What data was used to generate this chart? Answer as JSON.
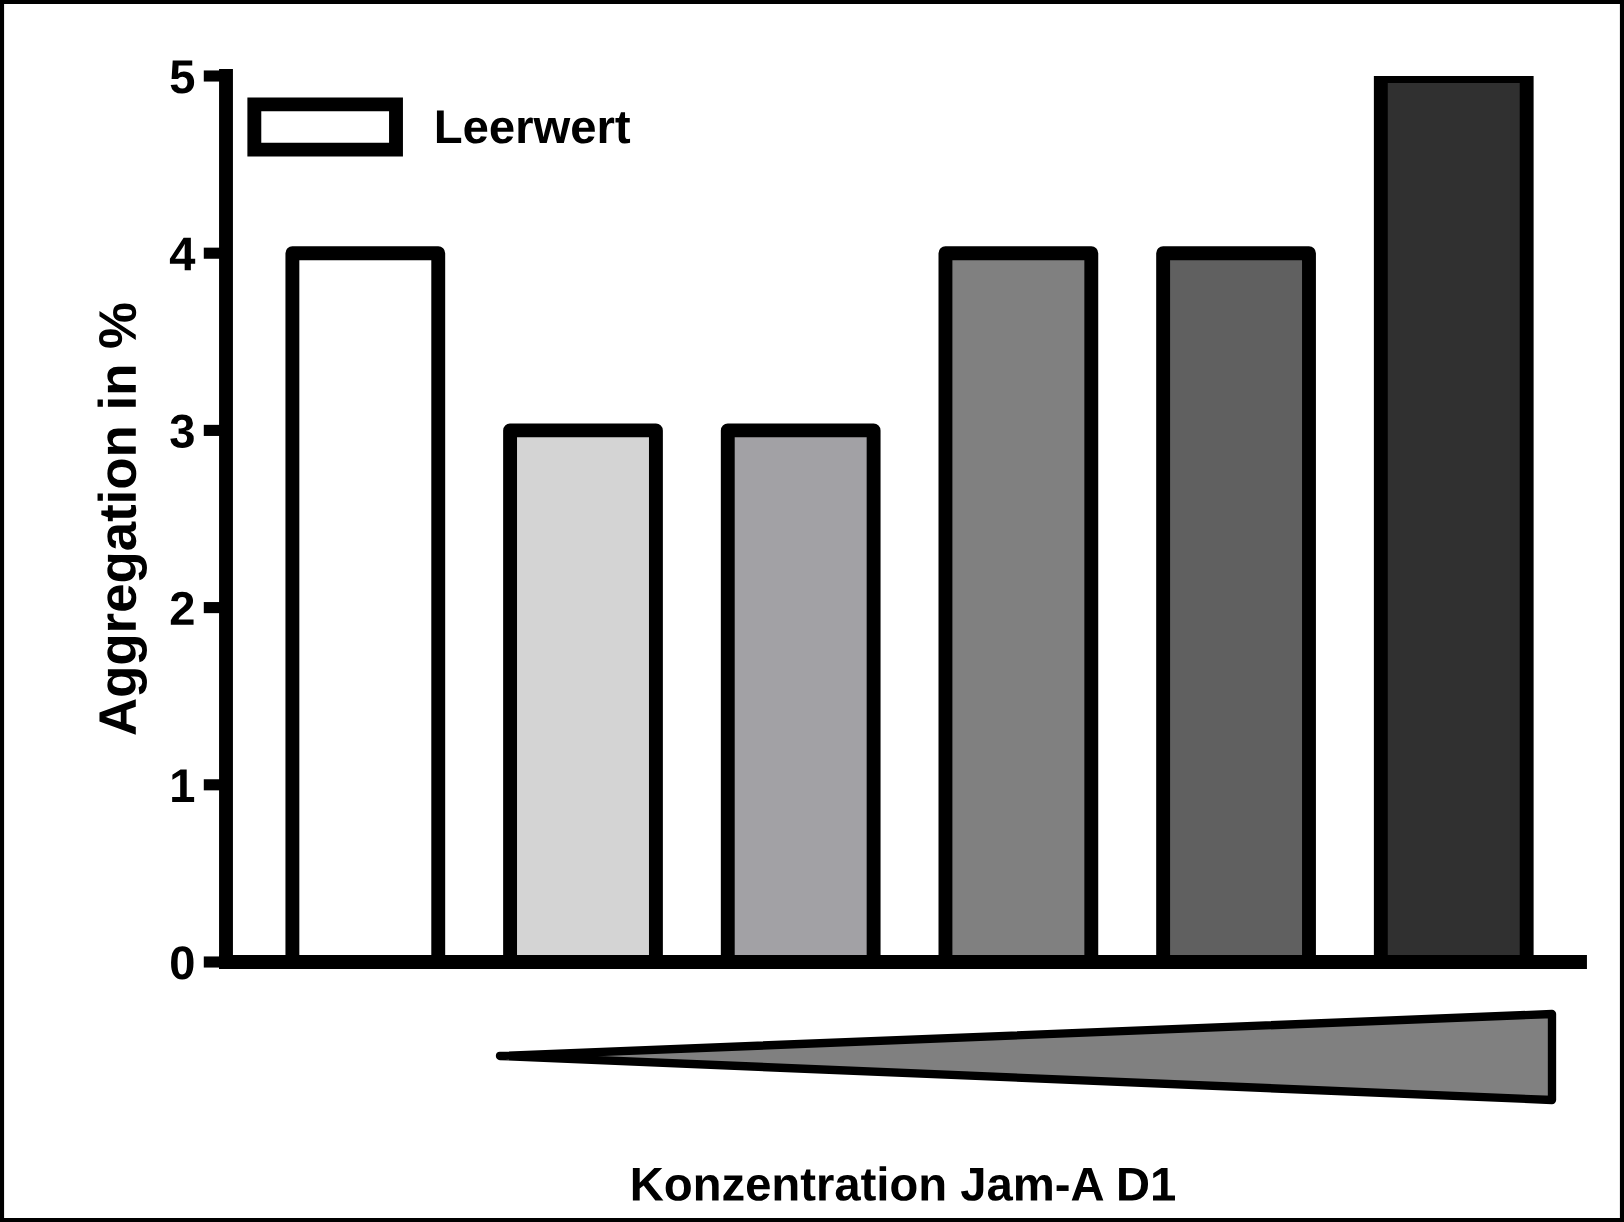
{
  "chart_data": {
    "type": "bar",
    "xlabel": "Konzentration Jam-A D1",
    "ylabel": "Aggregation in %",
    "categories": [
      null,
      null,
      null,
      null,
      null,
      null
    ],
    "series": [
      {
        "name": "Leerwert",
        "color": "#ffffff",
        "values": [
          4,
          null,
          null,
          null,
          null,
          null
        ]
      },
      {
        "colors": [
          null,
          "#d4d4d4",
          "#a2a1a5",
          "#808080",
          "#606060",
          "#303030"
        ],
        "values": [
          null,
          3,
          3,
          4,
          4,
          5
        ]
      }
    ],
    "ylim": [
      0,
      5
    ],
    "yticks": [
      0,
      1,
      2,
      3,
      4,
      5
    ],
    "grid": false,
    "legend": "top left"
  }
}
